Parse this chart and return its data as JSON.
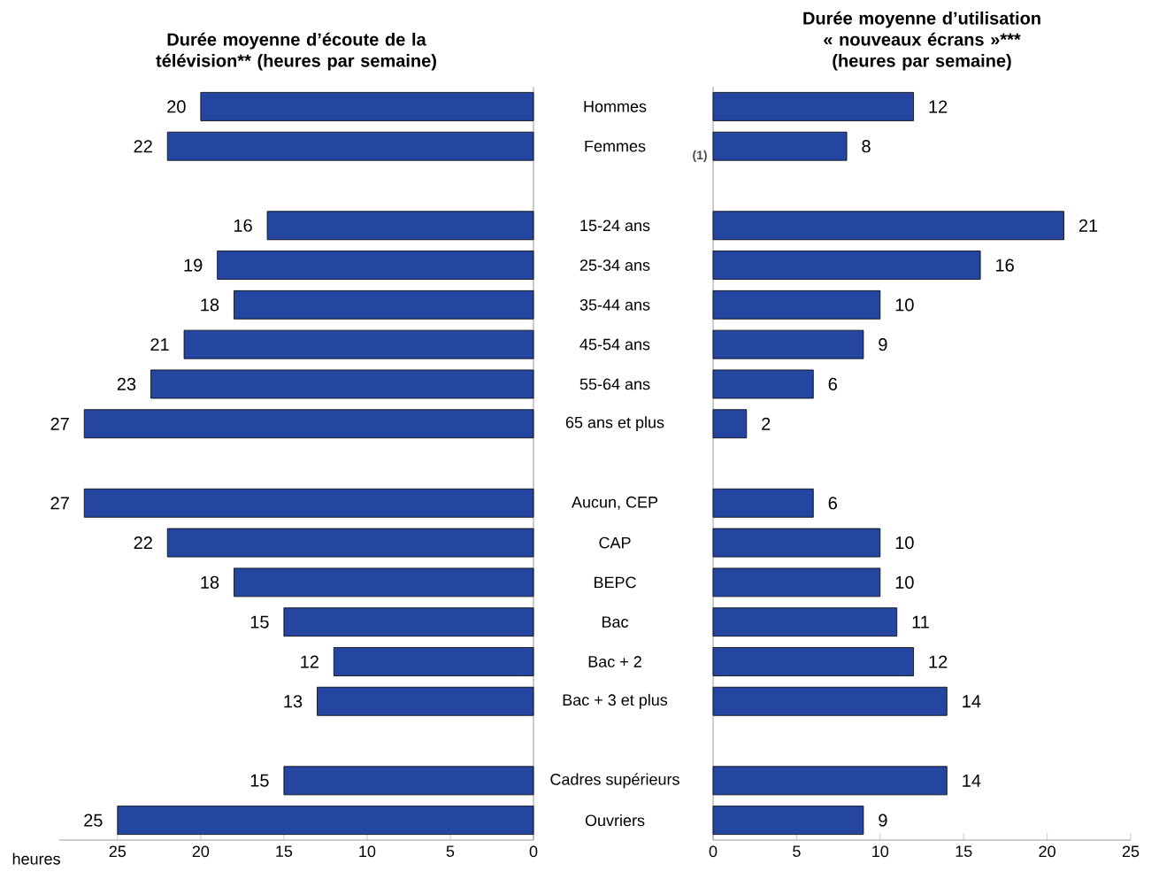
{
  "chart_data": [
    {
      "type": "bar",
      "orientation": "horizontal",
      "title": "Durée moyenne d’écoute de la télévision** (heures par semaine)",
      "xlabel": "heures",
      "categories": [
        "Hommes",
        "Femmes",
        null,
        "15-24 ans",
        "25-34 ans",
        "35-44 ans",
        "45-54 ans",
        "55-64 ans",
        "65 ans et plus",
        null,
        "Aucun, CEP",
        "CAP",
        "BEPC",
        "Bac",
        "Bac + 2",
        "Bac + 3 et plus",
        null,
        "Cadres supérieurs",
        "Ouvriers"
      ],
      "values": [
        20,
        22,
        null,
        16,
        19,
        18,
        21,
        23,
        27,
        null,
        27,
        22,
        18,
        15,
        12,
        13,
        null,
        15,
        25
      ],
      "color": "#2446a0",
      "xlim": [
        28.5,
        0
      ],
      "xticks": [
        25,
        20,
        15,
        10,
        5,
        0
      ],
      "data_labels": true
    },
    {
      "type": "bar",
      "orientation": "horizontal",
      "title": "Durée moyenne d’utilisation « nouveaux écrans »*** (heures par semaine)",
      "annotations": [
        "(1)"
      ],
      "categories": [
        null,
        null,
        null,
        null,
        null,
        null,
        null,
        null,
        null,
        null,
        null,
        null,
        null,
        null,
        null,
        null,
        null,
        null,
        null
      ],
      "values": [
        12,
        8,
        null,
        21,
        16,
        10,
        9,
        6,
        2,
        null,
        6,
        10,
        10,
        11,
        12,
        14,
        null,
        14,
        9
      ],
      "color": "#2446a0",
      "xlim": [
        0,
        25
      ],
      "xticks": [
        0,
        5,
        10,
        15,
        20,
        25
      ],
      "data_labels": true,
      "tick_labels": "x"
    }
  ]
}
